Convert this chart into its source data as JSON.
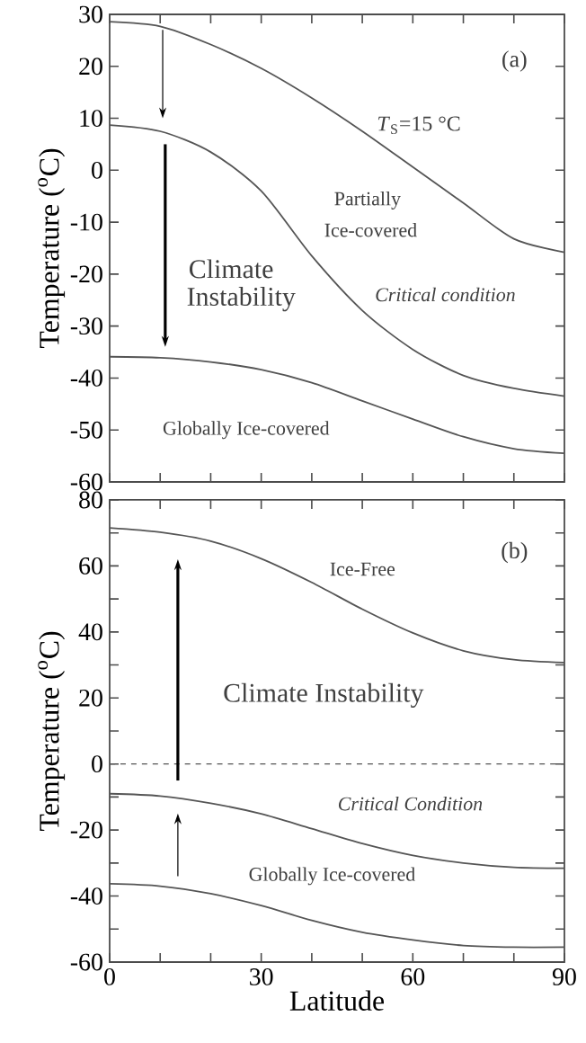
{
  "chart_data": [
    {
      "type": "line",
      "x": [
        0,
        10,
        20,
        30,
        40,
        50,
        60,
        70,
        80,
        90
      ],
      "ylabel": "Temperature ($^{o}$C)",
      "xlim": [
        0,
        90
      ],
      "ylim": [
        -60,
        30
      ],
      "xticks": [
        0,
        {
          "value": 10,
          "label": null
        },
        {
          "value": 20,
          "label": null
        },
        30,
        {
          "value": 40,
          "label": null
        },
        {
          "value": 50,
          "label": null
        },
        60,
        {
          "value": 70,
          "label": null
        },
        {
          "value": 80,
          "label": null
        },
        90
      ],
      "yticks": [
        -60,
        -50,
        -40,
        -30,
        -20,
        -10,
        0,
        10,
        20,
        30
      ],
      "tick_labels": "y",
      "grid": false,
      "marker": "none",
      "line_style": "solid",
      "series": [
        {
          "color": "#555555",
          "values": [
            28.6,
            27.7,
            24.2,
            19.6,
            13.9,
            7.5,
            0.6,
            -6.3,
            -13.2,
            -15.8
          ]
        },
        {
          "color": "#555555",
          "values": [
            8.7,
            7.5,
            3.5,
            -4.0,
            -16.5,
            -27.0,
            -34.5,
            -39.5,
            -42.0,
            -43.5
          ]
        },
        {
          "color": "#555555",
          "values": [
            -35.9,
            -36.1,
            -36.9,
            -38.4,
            -40.9,
            -44.4,
            -47.9,
            -51.3,
            -53.6,
            -54.5
          ]
        }
      ],
      "annotations": [
        "(a)",
        "*T*$_{S}$=15 °C",
        "Partially",
        "Ice-covered",
        "Climate",
        "Instability",
        "*Critical condition*",
        "Globally Ice-covered"
      ]
    },
    {
      "type": "line",
      "x": [
        0,
        10,
        20,
        30,
        40,
        50,
        60,
        70,
        80,
        90
      ],
      "xlabel": "Latitude",
      "ylabel": "Temperature ($^{o}$C)",
      "xlim": [
        0,
        90
      ],
      "ylim": [
        -60,
        80
      ],
      "xticks": [
        0,
        {
          "value": 10,
          "label": null
        },
        {
          "value": 20,
          "label": null
        },
        30,
        {
          "value": 40,
          "label": null
        },
        {
          "value": 50,
          "label": null
        },
        60,
        {
          "value": 70,
          "label": null
        },
        {
          "value": 80,
          "label": null
        },
        90
      ],
      "yticks": [
        -60,
        {
          "value": -50,
          "label": null
        },
        -40,
        {
          "value": -30,
          "label": null
        },
        -20,
        {
          "value": -10,
          "label": null
        },
        0,
        {
          "value": 10,
          "label": null
        },
        20,
        {
          "value": 30,
          "label": null
        },
        40,
        {
          "value": 50,
          "label": null
        },
        60,
        {
          "value": 70,
          "label": null
        },
        80
      ],
      "grid": false,
      "marker": "none",
      "line_style": "solid",
      "series": [
        {
          "color": "#555555",
          "values": [
            71.5,
            70.2,
            67.5,
            62.2,
            55.0,
            46.9,
            39.7,
            34.3,
            31.6,
            30.7
          ]
        },
        {
          "color": "#555555",
          "values": [
            -9.0,
            -9.7,
            -11.9,
            -15.1,
            -19.6,
            -24.1,
            -27.7,
            -30.0,
            -31.3,
            -31.6
          ]
        },
        {
          "color": "#555555",
          "values": [
            -36.3,
            -37.0,
            -39.3,
            -42.9,
            -47.4,
            -51.0,
            -53.3,
            -55.0,
            -55.5,
            -55.5
          ]
        }
      ],
      "ref_lines": [
        {
          "axis": "y",
          "value": 0,
          "color": "#555555",
          "line_style": "dashed"
        }
      ],
      "annotations": [
        "(b)",
        "Ice-Free",
        "Climate Instability",
        "*Critical Condition*",
        "Globally Ice-covered"
      ]
    }
  ]
}
